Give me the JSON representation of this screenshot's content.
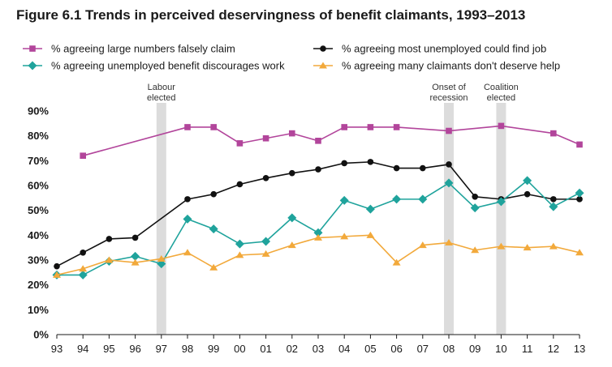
{
  "chart_data": {
    "type": "line",
    "title": "Figure 6.1 Trends in perceived deservingness of benefit claimants, 1993–2013",
    "xlabel": "",
    "ylabel": "",
    "categories": [
      "93",
      "94",
      "95",
      "96",
      "97",
      "98",
      "99",
      "00",
      "01",
      "02",
      "03",
      "04",
      "05",
      "06",
      "07",
      "08",
      "09",
      "10",
      "11",
      "12",
      "13"
    ],
    "yticks": [
      "0%",
      "10%",
      "20%",
      "30%",
      "40%",
      "50%",
      "60%",
      "70%",
      "80%",
      "90%"
    ],
    "ylim": [
      0,
      90
    ],
    "grid": false,
    "legend_position": "top",
    "series": [
      {
        "name": "% agreeing large numbers falsely claim",
        "color": "#b2459b",
        "marker": "square",
        "values": [
          null,
          72,
          null,
          null,
          null,
          83.5,
          83.5,
          77,
          79,
          81,
          78,
          83.5,
          83.5,
          83.5,
          null,
          82,
          null,
          84,
          null,
          81,
          76.5
        ]
      },
      {
        "name": "% agreeing most unemployed could find job",
        "color": "#111111",
        "marker": "circle",
        "values": [
          27.5,
          33,
          38.5,
          39,
          null,
          54.5,
          56.5,
          60.5,
          63,
          65,
          66.5,
          69,
          69.5,
          67,
          67,
          68.5,
          55.5,
          54.5,
          56.5,
          54.5,
          54.5
        ]
      },
      {
        "name": "% agreeing unemployed benefit discourages work",
        "color": "#1fa39c",
        "marker": "diamond",
        "values": [
          24,
          24,
          29.5,
          31.5,
          28.5,
          46.5,
          42.5,
          36.5,
          37.5,
          47,
          41,
          54,
          50.5,
          54.5,
          54.5,
          61,
          51,
          53.5,
          62,
          51.5,
          57
        ]
      },
      {
        "name": "% agreeing many claimants don't deserve help",
        "color": "#f2a93b",
        "marker": "triangle",
        "values": [
          24,
          26.5,
          30,
          29,
          30.5,
          33,
          27,
          32,
          32.5,
          36,
          39,
          39.5,
          40,
          29,
          36,
          37,
          34,
          35.5,
          35,
          35.5,
          33
        ]
      }
    ],
    "annotations": [
      {
        "label_lines": [
          "Labour",
          "elected"
        ],
        "at": "97"
      },
      {
        "label_lines": [
          "Onset of",
          "recession"
        ],
        "at": "08"
      },
      {
        "label_lines": [
          "Coalition",
          "elected"
        ],
        "at": "10"
      }
    ]
  }
}
